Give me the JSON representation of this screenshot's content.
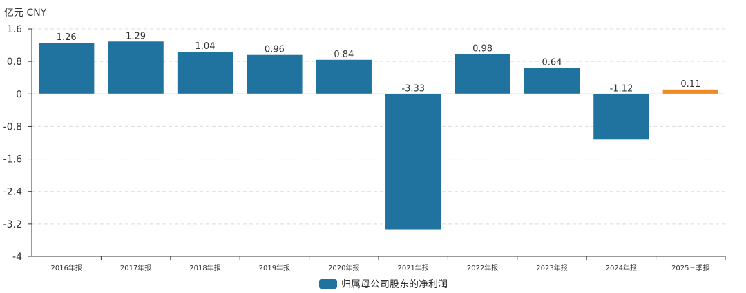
{
  "chart_data": {
    "type": "bar",
    "unit_label": "亿元  CNY",
    "categories": [
      "2016年报",
      "2017年报",
      "2018年报",
      "2019年报",
      "2020年报",
      "2021年报",
      "2022年报",
      "2023年报",
      "2024年报",
      "2025三季报"
    ],
    "series": [
      {
        "name": "归属母公司股东的净利润",
        "values": [
          1.26,
          1.29,
          1.04,
          0.96,
          0.84,
          -3.33,
          0.98,
          0.64,
          -1.12,
          0.11
        ],
        "value_labels": [
          "1.26",
          "1.29",
          "1.04",
          "0.96",
          "0.84",
          "-3.33",
          "0.98",
          "0.64",
          "-1.12",
          "0.11"
        ]
      }
    ],
    "highlight_index": 9,
    "colors": {
      "bar": "#21739f",
      "highlight": "#f08a24",
      "grid": "#dddddd",
      "axis": "#333333",
      "text": "#333333"
    },
    "ylim": [
      -4,
      1.6
    ],
    "yticks": [
      1.6,
      0.8,
      0,
      -0.8,
      -1.6,
      -2.4,
      -3.2,
      -4
    ],
    "ytick_labels": [
      "1.6",
      "0.8",
      "0",
      "-0.8",
      "-1.6",
      "-2.4",
      "-3.2",
      "-4"
    ],
    "grid": true,
    "legend_position": "bottom-center"
  }
}
